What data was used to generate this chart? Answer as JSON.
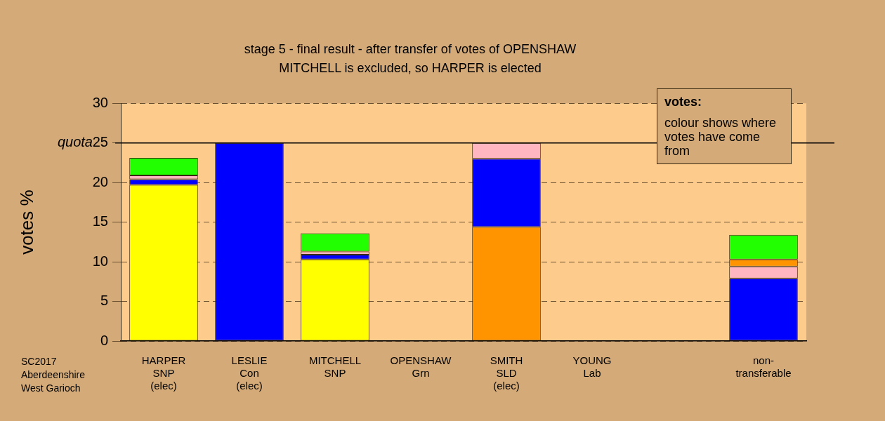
{
  "chart_data": {
    "type": "bar",
    "stacked": true,
    "title": "stage 5 - final result - after transfer of votes of OPENSHAW",
    "subtitle": "MITCHELL is excluded, so HARPER is elected",
    "ylabel": "votes %",
    "categories": [
      "HARPER\nSNP\n(elec)",
      "LESLIE\nCon\n(elec)",
      "MITCHELL\nSNP",
      "OPENSHAW\nGrn",
      "SMITH\nSLD\n(elec)",
      "YOUNG\nLab",
      null,
      "non-\ntransferable"
    ],
    "series": [
      {
        "color": "#ffff00",
        "values": [
          19.7,
          null,
          10.3,
          null,
          null,
          null,
          null,
          null
        ]
      },
      {
        "color": "#ff9400",
        "values": [
          null,
          null,
          null,
          null,
          14.4,
          null,
          null,
          null
        ]
      },
      {
        "color": "#0000ff",
        "values": [
          0.7,
          25,
          0.6,
          null,
          8.6,
          null,
          null,
          7.9
        ]
      },
      {
        "color": "#ffb6c1",
        "values": [
          0.5,
          null,
          0.4,
          null,
          2.0,
          null,
          null,
          1.5
        ]
      },
      {
        "color": "#ff9400",
        "values": [
          null,
          null,
          null,
          null,
          null,
          null,
          null,
          0.9
        ]
      },
      {
        "color": "#22ff00",
        "values": [
          2.2,
          null,
          2.3,
          null,
          null,
          null,
          null,
          3.1
        ]
      }
    ],
    "ylim": [
      0,
      30
    ],
    "yticks": [
      0,
      5,
      10,
      15,
      20,
      25,
      30
    ],
    "grid": "y",
    "legend": false,
    "ref_lines": [
      {
        "axis": "y",
        "value": 25,
        "label": "quota",
        "color": "#000000",
        "line_style": "solid"
      }
    ],
    "annotations": [
      "SC2017\nAberdeenshire\nWest Garioch",
      "votes:",
      "colour shows where votes have come from"
    ]
  }
}
